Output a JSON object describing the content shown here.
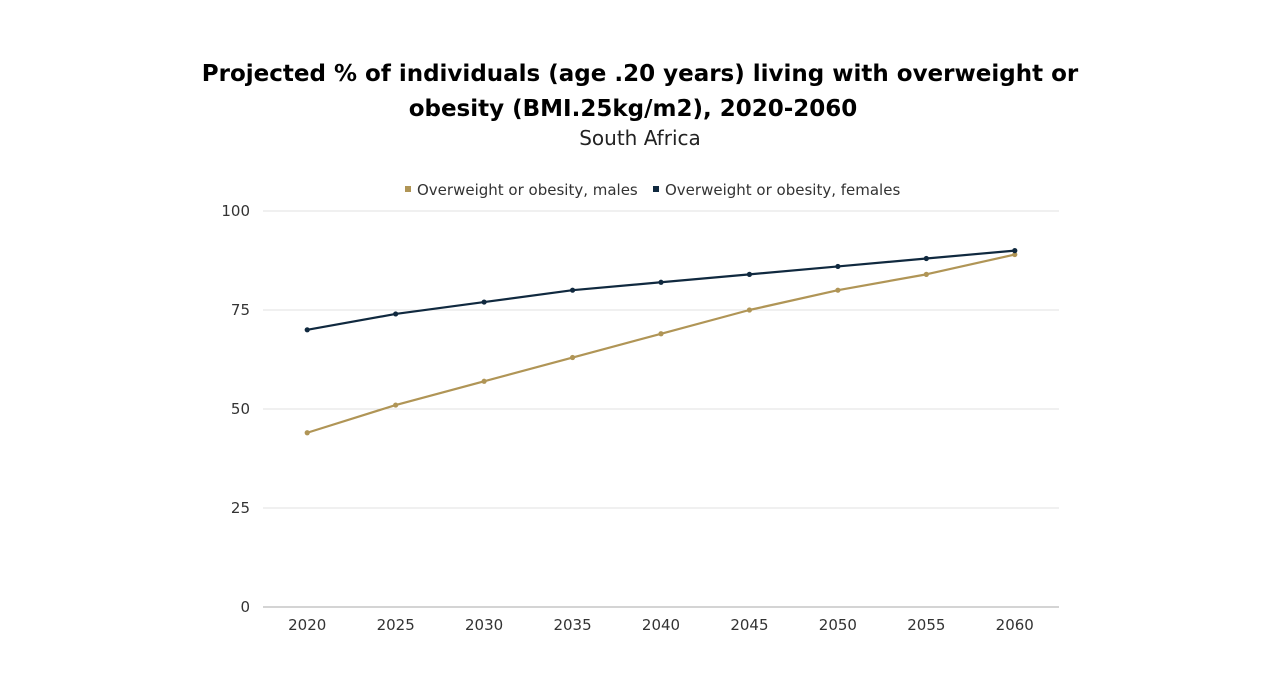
{
  "chart_data": {
    "type": "line",
    "title_lines": [
      "Projected % of individuals (age .20 years) living with overweight or",
      "obesity (BMI.25kg/m2), 2020-2060"
    ],
    "subtitle": "South Africa",
    "categories": [
      "2020",
      "2025",
      "2030",
      "2035",
      "2040",
      "2045",
      "2050",
      "2055",
      "2060"
    ],
    "series": [
      {
        "name": "Overweight or obesity, males",
        "color": "#b09556",
        "values": [
          44,
          51,
          57,
          63,
          69,
          75,
          80,
          84,
          89
        ]
      },
      {
        "name": "Overweight or obesity, females",
        "color": "#10293f",
        "values": [
          70,
          74,
          77,
          80,
          82,
          84,
          86,
          88,
          90
        ]
      }
    ],
    "y_ticks": [
      "0",
      "25",
      "50",
      "75",
      "100"
    ],
    "ylim": [
      0,
      100
    ],
    "xlabel": "",
    "ylabel": "",
    "grid": true,
    "legend_position": "top-center"
  }
}
